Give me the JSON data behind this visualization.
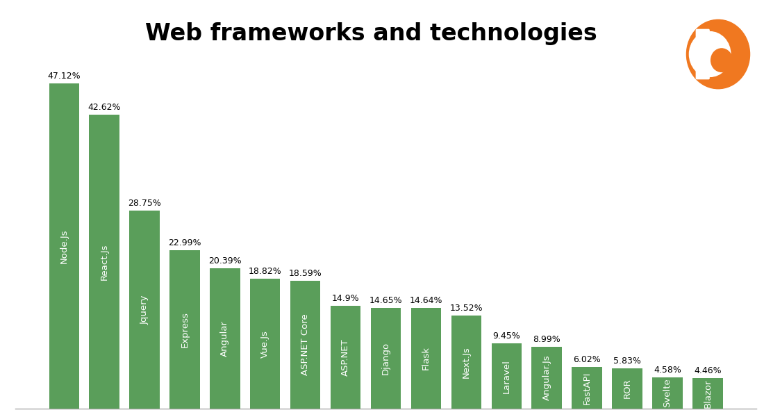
{
  "categories": [
    "Node.Js",
    "React.Js",
    "Jquery",
    "Express",
    "Angular",
    "Vue.Js",
    "ASP.NET Core",
    "ASP.NET",
    "Django",
    "Flask",
    "Next.Js",
    "Laravel",
    "Angular.Js",
    "FastAPI",
    "ROR",
    "Svelte",
    "Blazor"
  ],
  "values": [
    47.12,
    42.62,
    28.75,
    22.99,
    20.39,
    18.82,
    18.59,
    14.9,
    14.65,
    14.64,
    13.52,
    9.45,
    8.99,
    6.02,
    5.83,
    4.58,
    4.46
  ],
  "bar_color": "#5a9e5a",
  "title": "Web frameworks and technologies",
  "title_fontsize": 24,
  "title_fontweight": "bold",
  "ylim": [
    0,
    52
  ],
  "background_color": "#ffffff",
  "label_fontsize": 9,
  "bar_label_fontsize": 9,
  "tick_fontsize": 9.5,
  "logo_circle_color": "#f07820"
}
